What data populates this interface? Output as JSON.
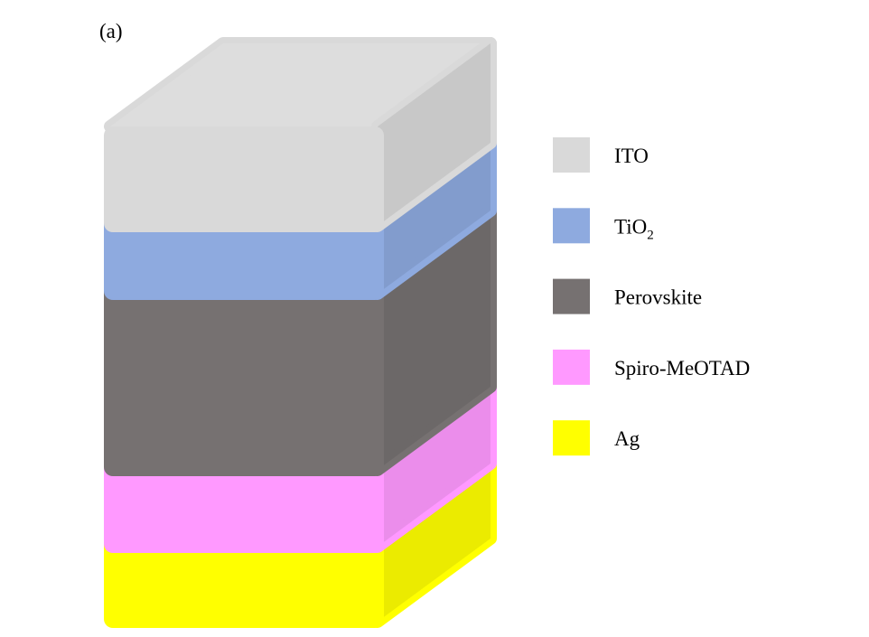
{
  "panel_label": "(a)",
  "legend": [
    {
      "label": "ITO",
      "color": "#d9d9d9"
    },
    {
      "label": {
        "text": "TiO",
        "subscript": "2"
      },
      "color": "#8eaadf"
    },
    {
      "label": "Perovskite",
      "color": "#767171"
    },
    {
      "label": "Spiro-MeOTAD",
      "color": "#ff99ff"
    },
    {
      "label": "Ag",
      "color": "#ffff00"
    }
  ]
}
